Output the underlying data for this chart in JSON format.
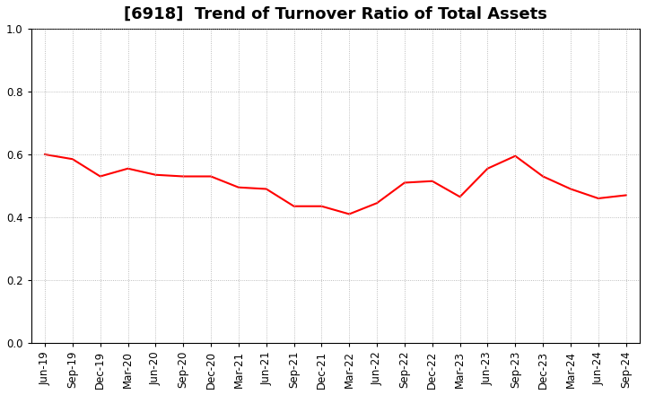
{
  "title": "[6918]  Trend of Turnover Ratio of Total Assets",
  "line_color": "#FF0000",
  "line_width": 1.5,
  "background_color": "#FFFFFF",
  "grid_color": "#AAAAAA",
  "ylim": [
    0.0,
    1.0
  ],
  "yticks": [
    0.0,
    0.2,
    0.4,
    0.6,
    0.8,
    1.0
  ],
  "labels": [
    "Jun-19",
    "Sep-19",
    "Dec-19",
    "Mar-20",
    "Jun-20",
    "Sep-20",
    "Dec-20",
    "Mar-21",
    "Jun-21",
    "Sep-21",
    "Dec-21",
    "Mar-22",
    "Jun-22",
    "Sep-22",
    "Dec-22",
    "Mar-23",
    "Jun-23",
    "Sep-23",
    "Dec-23",
    "Mar-24",
    "Jun-24",
    "Sep-24"
  ],
  "values": [
    0.6,
    0.585,
    0.53,
    0.555,
    0.535,
    0.53,
    0.53,
    0.495,
    0.49,
    0.435,
    0.435,
    0.41,
    0.445,
    0.51,
    0.515,
    0.465,
    0.555,
    0.595,
    0.53,
    0.49,
    0.46,
    0.47
  ],
  "title_fontsize": 13,
  "tick_fontsize": 8.5,
  "grid_linestyle": ":",
  "grid_linewidth": 0.6
}
